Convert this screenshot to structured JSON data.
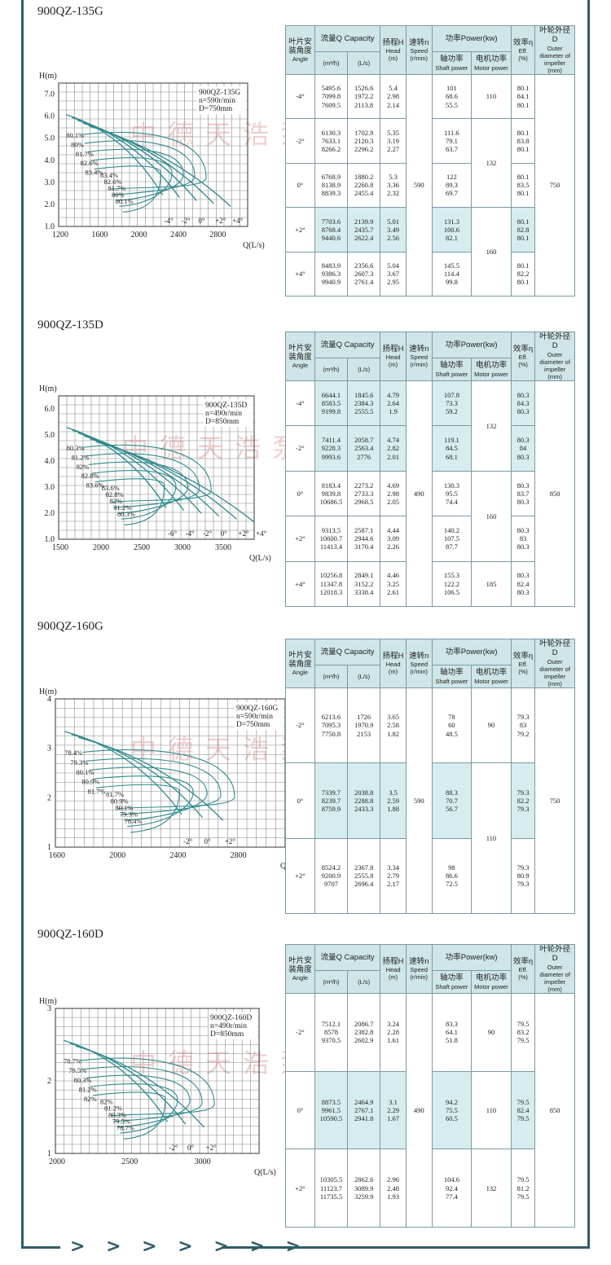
{
  "headers": {
    "angle_zh": "叶片安装角度",
    "angle_en": "Angle",
    "capacity": "流量Q Capacity",
    "capacity_m3h": "(m³/h)",
    "capacity_ls": "(L/s)",
    "head_zh": "扬程H",
    "head_en": "Head",
    "head_unit": "(m)",
    "speed_zh": "速转n",
    "speed_en": "Speed",
    "speed_unit": "(r/min)",
    "power": "功率Power(kw)",
    "shaft_zh": "轴功率",
    "shaft_en": "Shaft power",
    "motor_zh": "电机功率",
    "motor_en": "Motor power",
    "eff_zh": "效率η",
    "eff_en": "Eff.",
    "eff_unit": "(%)",
    "dia_zh": "叶轮外径 D",
    "dia_en": "Outer diameter of impeller",
    "dia_unit": "(mm)"
  },
  "watermark": "中德天浩泵业集团",
  "footer": {
    "arrows": "> > > > > > >"
  },
  "sections": [
    {
      "title": "900QZ-135G",
      "speed": "590",
      "diameter": "750",
      "chart": {
        "model": "900QZ-135G",
        "speed_label": "n=590r/min",
        "dia_label": "D=750mm",
        "y_axis_label": "H(m)",
        "x_axis_label": "Q(L/s)",
        "y_ticks": [
          "7.0",
          "6.0",
          "5.0",
          "4.0",
          "3.0",
          "2.0",
          "1.0"
        ],
        "x_ticks": [
          "1200",
          "1600",
          "2000",
          "2400",
          "2800"
        ],
        "eff_labels": [
          "80.1%",
          "80%",
          "81.7%",
          "82.6%",
          "83.4%",
          "83.4%",
          "82.6%",
          "81.7%",
          "80%",
          "80.1%"
        ],
        "angle_labels": [
          "-4°",
          "-2°",
          "0°",
          "+2°",
          "+4°"
        ]
      },
      "motor": [
        "110",
        "132",
        "160"
      ],
      "rows": [
        {
          "angle": "-4°",
          "m3h": [
            "5495.6",
            "7099.8",
            "7609.5"
          ],
          "ls": [
            "1526.6",
            "1972.2",
            "2113.8"
          ],
          "head": [
            "5.4",
            "2.98",
            "2.14"
          ],
          "shaft": [
            "101",
            "68.6",
            "55.5"
          ],
          "eff": [
            "80.1",
            "84.1",
            "80.1"
          ]
        },
        {
          "angle": "-2°",
          "m3h": [
            "6130.3",
            "7633.1",
            "8266.2"
          ],
          "ls": [
            "1702.9",
            "2120.3",
            "2296.2"
          ],
          "head": [
            "5.35",
            "3.19",
            "2.27"
          ],
          "shaft": [
            "111.6",
            "79.1",
            "63.7"
          ],
          "eff": [
            "80.1",
            "83.8",
            "80.1"
          ]
        },
        {
          "angle": "0°",
          "m3h": [
            "6768.9",
            "8138.9",
            "8839.3"
          ],
          "ls": [
            "1880.2",
            "2260.8",
            "2455.4"
          ],
          "head": [
            "5.3",
            "3.36",
            "2.32"
          ],
          "shaft": [
            "122",
            "89.3",
            "69.7"
          ],
          "eff": [
            "80.1",
            "83.5",
            "80.1"
          ]
        },
        {
          "angle": "+2°",
          "m3h": [
            "7703.6",
            "8768.4",
            "9440.6"
          ],
          "ls": [
            "2139.9",
            "2435.7",
            "2622.4"
          ],
          "head": [
            "5.01",
            "3.49",
            "2.56"
          ],
          "shaft": [
            "131.3",
            "100.6",
            "82.1"
          ],
          "eff": [
            "80.1",
            "82.8",
            "80.1"
          ]
        },
        {
          "angle": "+4°",
          "m3h": [
            "8483.9",
            "9386.3",
            "9940.9"
          ],
          "ls": [
            "2356.6",
            "2607.3",
            "2761.4"
          ],
          "head": [
            "5.04",
            "3.67",
            "2.95"
          ],
          "shaft": [
            "145.5",
            "114.4",
            "99.8"
          ],
          "eff": [
            "80.1",
            "82.2",
            "80.1"
          ]
        }
      ]
    },
    {
      "title": "900QZ-135D",
      "speed": "490",
      "diameter": "850",
      "chart": {
        "model": "900QZ-135D",
        "speed_label": "n=490r/min",
        "dia_label": "D=850mm",
        "y_axis_label": "H(m)",
        "x_axis_label": "Q(L/s)",
        "y_ticks": [
          "6.0",
          "5.0",
          "4.0",
          "3.0",
          "2.0",
          "1.0"
        ],
        "x_ticks": [
          "1500",
          "2000",
          "2500",
          "3000",
          "3500"
        ],
        "eff_labels": [
          "80.3%",
          "81.2%",
          "82%",
          "82.8%",
          "83.6%",
          "83.6%",
          "82.8%",
          "82%",
          "81.2%",
          "80.3%"
        ],
        "angle_labels": [
          "-6°",
          "-4°",
          "-2°",
          "0°",
          "+2°",
          "+4°"
        ]
      },
      "motor": [
        "132",
        "160",
        "185"
      ],
      "rows": [
        {
          "angle": "-4°",
          "m3h": [
            "6644.1",
            "8583.5",
            "9199.8"
          ],
          "ls": [
            "1845.6",
            "2384.3",
            "2555.5"
          ],
          "head": [
            "4.79",
            "2.64",
            "1.9"
          ],
          "shaft": [
            "107.8",
            "73.3",
            "59.2"
          ],
          "eff": [
            "80.3",
            "84.3",
            "80.3"
          ]
        },
        {
          "angle": "-2°",
          "m3h": [
            "7411.4",
            "9228.3",
            "9993.6"
          ],
          "ls": [
            "2058.7",
            "2563.4",
            "2776"
          ],
          "head": [
            "4.74",
            "2.82",
            "2.01"
          ],
          "shaft": [
            "119.1",
            "84.5",
            "68.1"
          ],
          "eff": [
            "80.3",
            "84",
            "80.3"
          ]
        },
        {
          "angle": "0°",
          "m3h": [
            "8183.4",
            "9839.8",
            "10686.5"
          ],
          "ls": [
            "2273.2",
            "2733.3",
            "2968.5"
          ],
          "head": [
            "4.69",
            "2.98",
            "2.05"
          ],
          "shaft": [
            "130.3",
            "95.5",
            "74.4"
          ],
          "eff": [
            "80.3",
            "83.7",
            "80.3"
          ]
        },
        {
          "angle": "+2°",
          "m3h": [
            "9313.5",
            "10600.7",
            "11413.4"
          ],
          "ls": [
            "2587.1",
            "2944.6",
            "3170.4"
          ],
          "head": [
            "4.44",
            "3.09",
            "2.26"
          ],
          "shaft": [
            "140.2",
            "107.5",
            "87.7"
          ],
          "eff": [
            "80.3",
            "83",
            "80.3"
          ]
        },
        {
          "angle": "+4°",
          "m3h": [
            "10256.8",
            "11347.8",
            "12018.3"
          ],
          "ls": [
            "2849.1",
            "3152.2",
            "3338.4"
          ],
          "head": [
            "4.46",
            "3.25",
            "2.61"
          ],
          "shaft": [
            "155.3",
            "122.2",
            "106.5"
          ],
          "eff": [
            "80.3",
            "82.4",
            "80.3"
          ]
        }
      ]
    },
    {
      "title": "900QZ-160G",
      "speed": "590",
      "diameter": "750",
      "chart": {
        "model": "900QZ-160G",
        "speed_label": "n=590r/min",
        "dia_label": "D=750mm",
        "y_axis_label": "H(m)",
        "x_axis_label": "Q(L/s)",
        "y_ticks": [
          "4",
          "3",
          "2",
          "1"
        ],
        "x_ticks": [
          "1600",
          "2000",
          "2400",
          "2800"
        ],
        "eff_labels": [
          "78.4%",
          "79.3%",
          "80.1%",
          "80.9%",
          "81.7%",
          "81.7%",
          "80.9%",
          "80.1%",
          "79.3%",
          "78.4%"
        ],
        "angle_labels": [
          "-2°",
          "0°",
          "+2°"
        ]
      },
      "motor": [
        "90",
        "110"
      ],
      "rows": [
        {
          "angle": "-2°",
          "m3h": [
            "6213.6",
            "7095.3",
            "7750.8"
          ],
          "ls": [
            "1726",
            "1970.9",
            "2153"
          ],
          "head": [
            "3.65",
            "2.58",
            "1.82"
          ],
          "shaft": [
            "78",
            "60",
            "48.5"
          ],
          "eff": [
            "79.3",
            "83",
            "79.2"
          ]
        },
        {
          "angle": "0°",
          "m3h": [
            "7339.7",
            "8239.7",
            "8759.9"
          ],
          "ls": [
            "2038.8",
            "2288.8",
            "2433.3"
          ],
          "head": [
            "3.5",
            "2.59",
            "1.88"
          ],
          "shaft": [
            "88.3",
            "70.7",
            "56.7"
          ],
          "eff": [
            "79.3",
            "82.2",
            "79.3"
          ]
        },
        {
          "angle": "+2°",
          "m3h": [
            "8524.2",
            "9200.9",
            "9707"
          ],
          "ls": [
            "2367.8",
            "2555.8",
            "2696.4"
          ],
          "head": [
            "3.34",
            "2.79",
            "2.17"
          ],
          "shaft": [
            "98",
            "86.6",
            "72.5"
          ],
          "eff": [
            "79.3",
            "80.9",
            "79.3"
          ]
        }
      ]
    },
    {
      "title": "900QZ-160D",
      "speed": "490",
      "diameter": "850",
      "chart": {
        "model": "900QZ-160D",
        "speed_label": "n=490r/min",
        "dia_label": "D=850mm",
        "y_axis_label": "H(m)",
        "x_axis_label": "Q(L/s)",
        "y_ticks": [
          "3",
          "2",
          "1"
        ],
        "x_ticks": [
          "2000",
          "2500",
          "3000"
        ],
        "eff_labels": [
          "78.7%",
          "79.5%",
          "80.3%",
          "81.2%",
          "82%",
          "82%",
          "81.2%",
          "80.3%",
          "79.5%",
          "78.7%"
        ],
        "angle_labels": [
          "-2°",
          "0°",
          "+2°"
        ]
      },
      "motor": [
        "90",
        "110",
        "132"
      ],
      "rows": [
        {
          "angle": "-2°",
          "m3h": [
            "7512.1",
            "8578",
            "9370.5"
          ],
          "ls": [
            "2086.7",
            "2382.8",
            "2602.9"
          ],
          "head": [
            "3.24",
            "2.28",
            "1.61"
          ],
          "shaft": [
            "83.3",
            "64.1",
            "51.8"
          ],
          "eff": [
            "79.5",
            "83.2",
            "79.5"
          ]
        },
        {
          "angle": "0°",
          "m3h": [
            "8873.5",
            "9961.5",
            "10590.5"
          ],
          "ls": [
            "2464.9",
            "2767.1",
            "2941.8"
          ],
          "head": [
            "3.1",
            "2.29",
            "1.67"
          ],
          "shaft": [
            "94.2",
            "75.5",
            "60.5"
          ],
          "eff": [
            "79.5",
            "82.4",
            "79.5"
          ]
        },
        {
          "angle": "+2°",
          "m3h": [
            "10305.5",
            "11123.7",
            "11735.5"
          ],
          "ls": [
            "2862.6",
            "3089.9",
            "3259.9"
          ],
          "head": [
            "2.96",
            "2.48",
            "1.93"
          ],
          "shaft": [
            "104.6",
            "92.4",
            "77.4"
          ],
          "eff": [
            "79.5",
            "81.2",
            "79.5"
          ]
        }
      ]
    }
  ]
}
